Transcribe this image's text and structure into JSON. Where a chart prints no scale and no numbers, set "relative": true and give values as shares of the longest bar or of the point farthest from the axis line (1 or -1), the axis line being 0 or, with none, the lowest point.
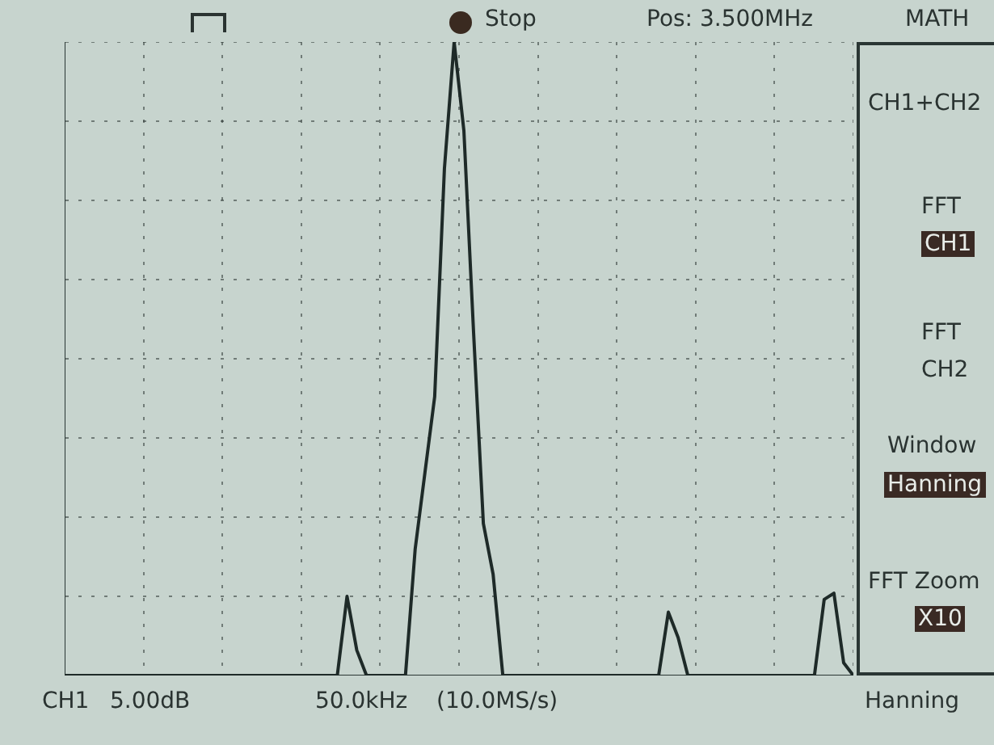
{
  "chart_data": {
    "type": "line",
    "relative": true,
    "grid": true,
    "color": "#1e2a28",
    "categories": [
      null,
      null,
      null,
      null,
      null,
      null,
      null,
      null,
      null,
      null,
      null,
      null,
      null,
      null,
      null,
      null,
      null,
      null,
      null,
      null,
      null,
      null,
      null,
      null,
      null,
      null,
      null,
      null,
      null,
      null,
      null,
      null,
      null,
      null,
      null,
      null,
      null,
      null,
      null,
      null,
      null,
      null,
      null,
      null,
      null,
      null,
      null,
      null,
      null,
      null,
      null,
      null,
      null,
      null,
      null,
      null,
      null,
      null,
      null,
      null,
      null,
      null,
      null,
      null,
      null,
      null,
      null,
      null,
      null,
      null,
      null,
      null,
      null,
      null,
      null,
      null,
      null,
      null,
      null,
      null,
      null,
      null
    ],
    "values": [
      0,
      0,
      0,
      0,
      0,
      0,
      0,
      0,
      0,
      0,
      0,
      0,
      0,
      0,
      0,
      0,
      0,
      0,
      0,
      0,
      0,
      0,
      0,
      0,
      0,
      0,
      0,
      0,
      0,
      0.125,
      0.04,
      0,
      0,
      0,
      0,
      0,
      0.2,
      0.32,
      0.44,
      0.8,
      1,
      0.86,
      0.54,
      0.24,
      0.16,
      0,
      0,
      0,
      0,
      0,
      0,
      0,
      0,
      0,
      0,
      0,
      0,
      0,
      0,
      0,
      0,
      0,
      0.1,
      0.06,
      0,
      0,
      0,
      0,
      0,
      0,
      0,
      0,
      0,
      0,
      0,
      0,
      0,
      0,
      0.12,
      0.13,
      0.02,
      0
    ],
    "annotations": [
      "Stop",
      "Pos: 3.500MHz",
      "MATH",
      "CH1+CH2",
      "FFT",
      "CH1",
      "FFT",
      "CH2",
      "Window",
      "Hanning",
      "FFT Zoom",
      "X10",
      "CH1",
      "5.00dB",
      "50.0kHz",
      "(10.0MS/s)",
      "Hanning"
    ]
  }
}
